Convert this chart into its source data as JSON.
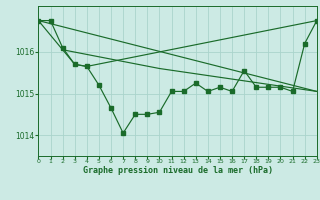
{
  "title": "Graphe pression niveau de la mer (hPa)",
  "bg_color": "#cceae4",
  "grid_color": "#aad4cc",
  "line_color": "#1a6b2a",
  "xlim": [
    0,
    23
  ],
  "ylim": [
    1013.5,
    1017.1
  ],
  "yticks": [
    1014,
    1015,
    1016
  ],
  "xticks": [
    0,
    1,
    2,
    3,
    4,
    5,
    6,
    7,
    8,
    9,
    10,
    11,
    12,
    13,
    14,
    15,
    16,
    17,
    18,
    19,
    20,
    21,
    22,
    23
  ],
  "series1_x": [
    0,
    1,
    2,
    3,
    4,
    5,
    6,
    7,
    8,
    9,
    10,
    11,
    12,
    13,
    14,
    15,
    16,
    17,
    18,
    19,
    20,
    21,
    22,
    23
  ],
  "series1_y": [
    1016.75,
    1016.75,
    1016.1,
    1015.7,
    1015.65,
    1015.2,
    1014.65,
    1014.05,
    1014.5,
    1014.5,
    1014.55,
    1015.05,
    1015.05,
    1015.25,
    1015.05,
    1015.15,
    1015.05,
    1015.55,
    1015.15,
    1015.15,
    1015.15,
    1015.05,
    1016.2,
    1016.75
  ],
  "series2_x": [
    0,
    2,
    3,
    4,
    23
  ],
  "series2_y": [
    1016.75,
    1016.05,
    1015.7,
    1015.65,
    1016.75
  ],
  "series3_x": [
    0,
    23
  ],
  "series3_y": [
    1016.75,
    1015.05
  ],
  "series4_x": [
    2,
    10,
    23
  ],
  "series4_y": [
    1016.05,
    1015.6,
    1015.05
  ]
}
